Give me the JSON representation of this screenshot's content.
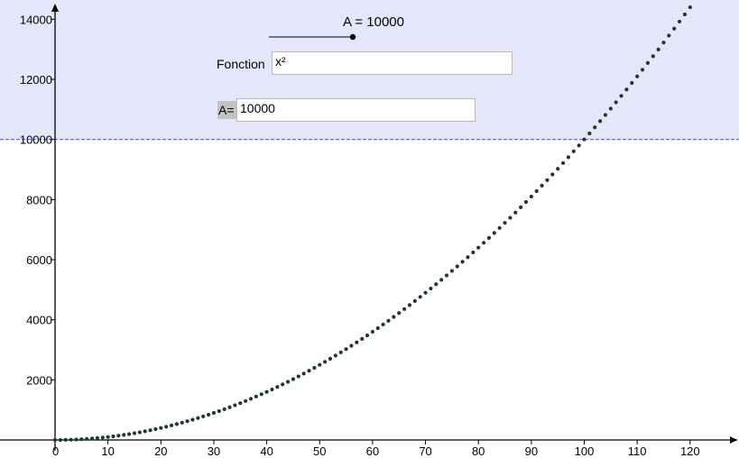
{
  "slider": {
    "label": "A = 10000",
    "value": 10000
  },
  "fonction": {
    "label": "Fonction",
    "value": "x²"
  },
  "a_input": {
    "label": "A=",
    "value": "10000"
  },
  "colors": {
    "shade_region": "#e6e6fb",
    "threshold_line": "#5b5bd6",
    "curve_points": "#1f3a24",
    "axis": "#000000"
  },
  "chart_data": {
    "type": "scatter",
    "function": "x²",
    "x_range": [
      0,
      120
    ],
    "y_range": [
      0,
      14000
    ],
    "x_ticks": [
      0,
      10,
      20,
      30,
      40,
      50,
      60,
      70,
      80,
      90,
      100,
      110,
      120
    ],
    "y_ticks": [
      2000,
      4000,
      6000,
      8000,
      10000,
      12000,
      14000
    ],
    "x_tick_labels": [
      "0",
      "10",
      "20",
      "30",
      "40",
      "50",
      "60",
      "70",
      "80",
      "90",
      "100",
      "110",
      "120"
    ],
    "y_tick_labels": [
      "2000",
      "4000",
      "6000",
      "8000",
      "10000",
      "12000",
      "14000"
    ],
    "point_step": 1,
    "threshold": 10000,
    "grid": false
  }
}
